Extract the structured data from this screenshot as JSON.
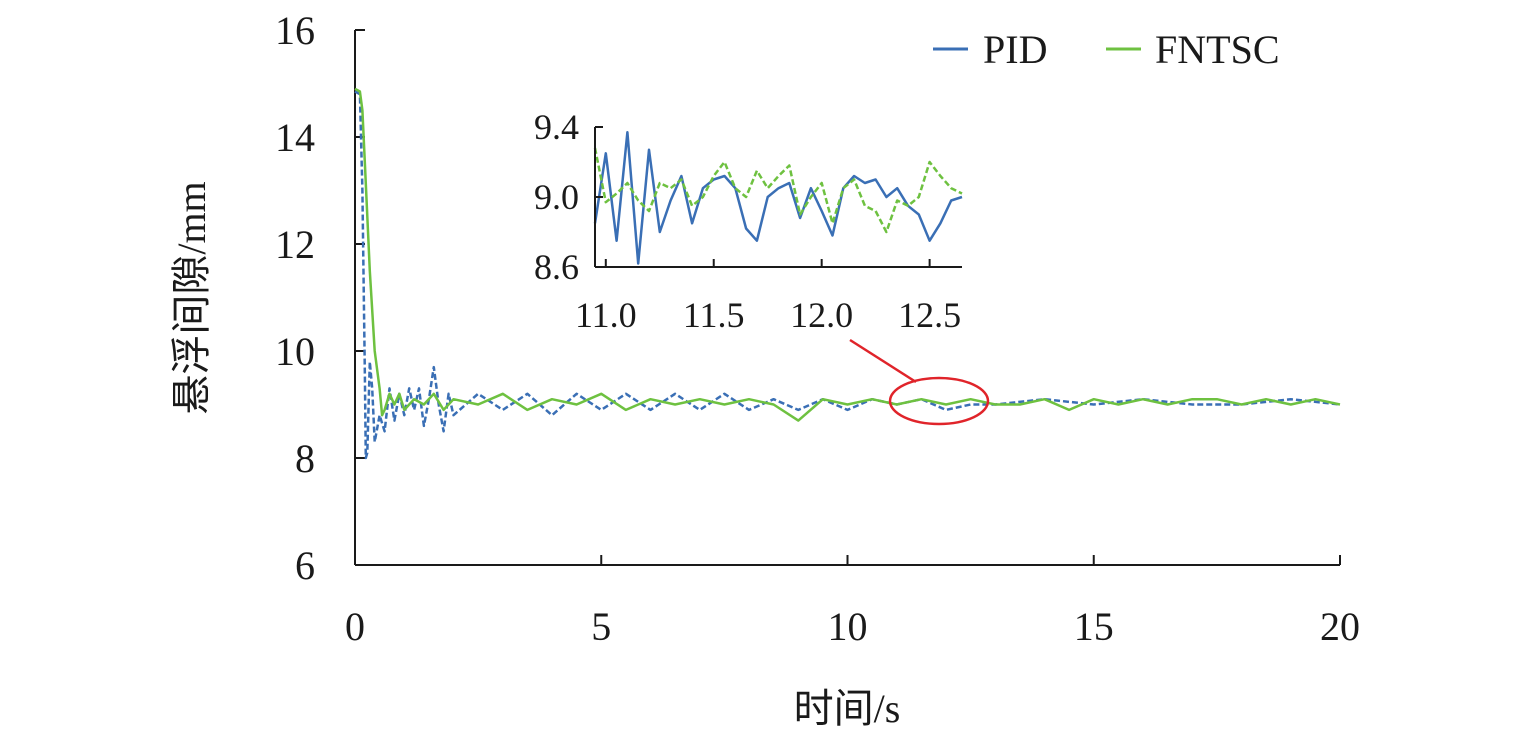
{
  "chart_data": {
    "type": "line",
    "title": "",
    "xlabel": "时间/s",
    "ylabel": "悬浮间隙/mm",
    "xlim": [
      0,
      20
    ],
    "ylim": [
      6,
      16
    ],
    "xticks": [
      "0",
      "5",
      "10",
      "15",
      "20"
    ],
    "yticks": [
      "6",
      "8",
      "10",
      "12",
      "14",
      "16"
    ],
    "xtick_values": [
      0,
      5,
      10,
      15,
      20
    ],
    "ytick_values": [
      6,
      8,
      10,
      12,
      14,
      16
    ],
    "grid": false,
    "legend_position": "top-right",
    "series": [
      {
        "name": "PID",
        "color": "#3a6fb5",
        "dash": "dashed",
        "x": [
          0,
          0.1,
          0.15,
          0.2,
          0.22,
          0.25,
          0.3,
          0.35,
          0.4,
          0.5,
          0.6,
          0.7,
          0.8,
          0.9,
          1.0,
          1.1,
          1.2,
          1.3,
          1.4,
          1.5,
          1.6,
          1.7,
          1.8,
          1.9,
          2.0,
          2.5,
          3.0,
          3.5,
          4.0,
          4.5,
          5.0,
          5.5,
          6.0,
          6.5,
          7.0,
          7.5,
          8.0,
          8.5,
          9.0,
          9.5,
          10.0,
          10.5,
          11.0,
          11.5,
          12.0,
          12.5,
          13.0,
          14.0,
          15.0,
          16.0,
          17.0,
          18.0,
          19.0,
          20.0
        ],
        "values": [
          14.85,
          14.8,
          13.0,
          9.5,
          8.0,
          8.1,
          9.8,
          9.3,
          8.3,
          8.8,
          8.5,
          9.3,
          8.7,
          9.2,
          8.8,
          9.3,
          8.9,
          9.3,
          8.6,
          9.1,
          9.7,
          9.0,
          8.5,
          9.2,
          8.8,
          9.2,
          8.9,
          9.2,
          8.8,
          9.2,
          8.9,
          9.2,
          8.9,
          9.2,
          8.9,
          9.2,
          8.9,
          9.1,
          8.9,
          9.1,
          8.9,
          9.1,
          9.0,
          9.1,
          8.9,
          9.0,
          9.0,
          9.1,
          9.0,
          9.1,
          9.0,
          9.0,
          9.1,
          9.0
        ]
      },
      {
        "name": "FNTSC",
        "color": "#6ec140",
        "dash": "solid",
        "x": [
          0,
          0.1,
          0.15,
          0.2,
          0.3,
          0.4,
          0.5,
          0.55,
          0.6,
          0.7,
          0.8,
          0.9,
          1.0,
          1.2,
          1.4,
          1.6,
          1.8,
          2.0,
          2.5,
          3.0,
          3.5,
          4.0,
          4.5,
          5.0,
          5.5,
          6.0,
          6.5,
          7.0,
          7.5,
          8.0,
          8.5,
          9.0,
          9.5,
          10.0,
          10.5,
          11.0,
          11.5,
          12.0,
          12.5,
          13.0,
          13.5,
          14.0,
          14.5,
          15.0,
          15.5,
          16.0,
          16.5,
          17.0,
          17.5,
          18.0,
          18.5,
          19.0,
          19.5,
          20.0
        ],
        "values": [
          14.9,
          14.85,
          14.5,
          13.5,
          11.5,
          10.0,
          9.3,
          8.8,
          8.9,
          9.2,
          9.0,
          9.2,
          8.9,
          9.1,
          9.0,
          9.2,
          8.9,
          9.1,
          9.0,
          9.2,
          8.9,
          9.1,
          9.0,
          9.2,
          8.9,
          9.1,
          9.0,
          9.1,
          9.0,
          9.1,
          9.0,
          8.7,
          9.1,
          9.0,
          9.1,
          9.0,
          9.1,
          9.0,
          9.1,
          9.0,
          9.0,
          9.1,
          8.9,
          9.1,
          9.0,
          9.1,
          9.0,
          9.1,
          9.1,
          9.0,
          9.1,
          9.0,
          9.1,
          9.0
        ]
      }
    ],
    "inset": {
      "xlim": [
        10.95,
        12.65
      ],
      "ylim": [
        8.6,
        9.4
      ],
      "xticks": [
        "11.0",
        "11.5",
        "12.0",
        "12.5"
      ],
      "yticks": [
        "9.4",
        "9.0",
        "8.6"
      ],
      "xtick_values": [
        11.0,
        11.5,
        12.0,
        12.5
      ],
      "ytick_values": [
        9.4,
        9.0,
        8.6
      ],
      "series": [
        {
          "name": "PID",
          "color": "#3a6fb5",
          "dash": "solid",
          "x": [
            10.95,
            11.0,
            11.05,
            11.1,
            11.15,
            11.2,
            11.25,
            11.3,
            11.35,
            11.4,
            11.45,
            11.5,
            11.55,
            11.6,
            11.65,
            11.7,
            11.75,
            11.8,
            11.85,
            11.9,
            11.95,
            12.0,
            12.05,
            12.1,
            12.15,
            12.2,
            12.25,
            12.3,
            12.35,
            12.4,
            12.45,
            12.5,
            12.55,
            12.6,
            12.65
          ],
          "values": [
            8.85,
            9.25,
            8.75,
            9.37,
            8.62,
            9.27,
            8.8,
            8.98,
            9.12,
            8.85,
            9.05,
            9.1,
            9.12,
            9.05,
            8.82,
            8.75,
            9.0,
            9.05,
            9.08,
            8.88,
            9.05,
            8.92,
            8.78,
            9.05,
            9.12,
            9.08,
            9.1,
            9.0,
            9.05,
            8.95,
            8.9,
            8.75,
            8.85,
            8.98,
            9.0
          ]
        },
        {
          "name": "FNTSC",
          "color": "#6ec140",
          "dash": "dashed",
          "x": [
            10.95,
            11.0,
            11.05,
            11.1,
            11.15,
            11.2,
            11.25,
            11.3,
            11.35,
            11.4,
            11.45,
            11.5,
            11.55,
            11.6,
            11.65,
            11.7,
            11.75,
            11.8,
            11.85,
            11.9,
            11.95,
            12.0,
            12.05,
            12.1,
            12.15,
            12.2,
            12.25,
            12.3,
            12.35,
            12.4,
            12.45,
            12.5,
            12.55,
            12.6,
            12.65
          ],
          "values": [
            9.28,
            8.97,
            9.02,
            9.08,
            8.98,
            8.92,
            9.08,
            9.05,
            9.1,
            8.95,
            9.0,
            9.12,
            9.2,
            9.05,
            9.0,
            9.15,
            9.05,
            9.12,
            9.18,
            8.9,
            9.0,
            9.08,
            8.85,
            9.05,
            9.1,
            8.95,
            8.92,
            8.8,
            8.98,
            8.95,
            9.0,
            9.2,
            9.12,
            9.05,
            9.02
          ]
        }
      ]
    }
  }
}
